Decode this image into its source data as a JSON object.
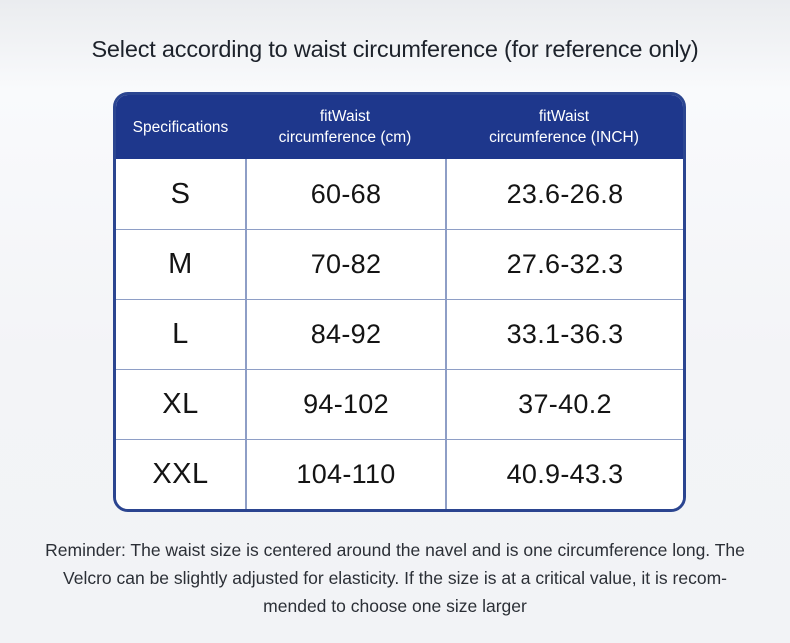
{
  "title": "Select according to waist circumference (for reference only)",
  "table": {
    "header": {
      "col1": "Specifications",
      "col2_line1": "fitWaist",
      "col2_line2": "circumference (cm)",
      "col3_line1": "fitWaist",
      "col3_line2": "circumference (INCH)"
    },
    "rows": [
      {
        "size": "S",
        "cm": "60-68",
        "inch": "23.6-26.8"
      },
      {
        "size": "M",
        "cm": "70-82",
        "inch": "27.6-32.3"
      },
      {
        "size": "L",
        "cm": "84-92",
        "inch": "33.1-36.3"
      },
      {
        "size": "XL",
        "cm": "94-102",
        "inch": "37-40.2"
      },
      {
        "size": "XXL",
        "cm": "104-110",
        "inch": "40.9-43.3"
      }
    ]
  },
  "reminder": {
    "lines": [
      "Reminder: The waist size is centered around the navel and is one circumference long. The",
      "Velcro can be slightly adjusted for elasticity. If the size is at a critical value, it is recom-",
      "mended to choose one size larger"
    ]
  },
  "colors": {
    "header_background": "#1e378c",
    "table_border": "#2b4590",
    "grid_line": "#8e9ec6",
    "page_background": "#f2f3f6",
    "header_text": "#ffffff",
    "body_text": "#141414"
  },
  "chart_data": {
    "type": "table",
    "title": "Select according to waist circumference (for reference only)",
    "columns": [
      "Specifications",
      "fitWaist circumference (cm)",
      "fitWaist circumference (INCH)"
    ],
    "rows": [
      [
        "S",
        "60-68",
        "23.6-26.8"
      ],
      [
        "M",
        "70-82",
        "27.6-32.3"
      ],
      [
        "L",
        "84-92",
        "33.1-36.3"
      ],
      [
        "XL",
        "94-102",
        "37-40.2"
      ],
      [
        "XXL",
        "104-110",
        "40.9-43.3"
      ]
    ],
    "note": "Reminder: The waist size is centered around the navel and is one circumference long. The Velcro can be slightly adjusted for elasticity. If the size is at a critical value, it is recommended to choose one size larger"
  }
}
